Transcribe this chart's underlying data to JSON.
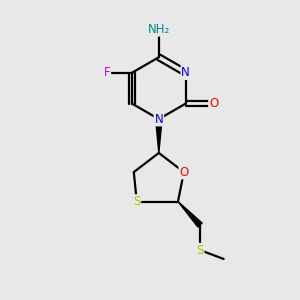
{
  "bg_color": "#e8e8e8",
  "atom_colors": {
    "C": "#000000",
    "N": "#0000dd",
    "O": "#ff0000",
    "F": "#cc00cc",
    "S": "#bbbb00",
    "H": "#008888"
  },
  "figsize": [
    3.0,
    3.0
  ],
  "dpi": 100
}
